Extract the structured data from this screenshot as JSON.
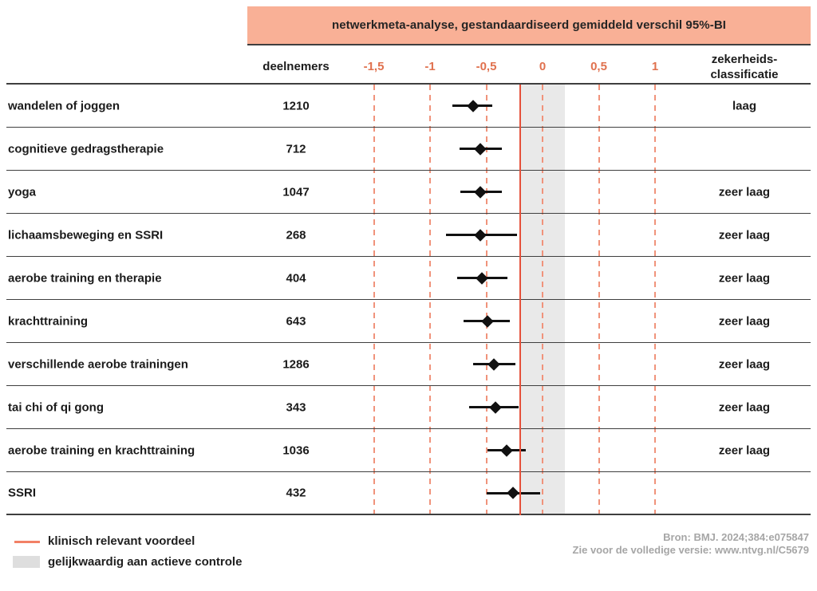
{
  "chart_data": {
    "type": "forest",
    "title": "netwerkmeta-analyse, gestandaardiseerd gemiddeld verschil 95%-BI",
    "columns": {
      "participants": "deelnemers",
      "certainty_line1": "zekerheids-",
      "certainty_line2": "classificatie"
    },
    "axis": {
      "tick_labels": [
        "-1,5",
        "-1",
        "-0,5",
        "0",
        "0,5",
        "1"
      ],
      "tick_values": [
        -1.5,
        -1,
        -0.5,
        0,
        0.5,
        1
      ],
      "xlim": [
        -1.72,
        1.4
      ],
      "grid": "dashed-vertical"
    },
    "reference_line": -0.2,
    "equivalence_band": [
      -0.2,
      0.2
    ],
    "rows": [
      {
        "label": "wandelen of joggen",
        "participants": "1210",
        "smd": -0.62,
        "ci_low": -0.8,
        "ci_high": -0.45,
        "certainty": "laag"
      },
      {
        "label": "cognitieve gedragstherapie",
        "participants": "712",
        "smd": -0.55,
        "ci_low": -0.74,
        "ci_high": -0.36,
        "certainty": ""
      },
      {
        "label": "yoga",
        "participants": "1047",
        "smd": -0.55,
        "ci_low": -0.73,
        "ci_high": -0.36,
        "certainty": "zeer laag"
      },
      {
        "label": "lichaamsbeweging en SSRI",
        "participants": "268",
        "smd": -0.55,
        "ci_low": -0.86,
        "ci_high": -0.23,
        "certainty": "zeer laag"
      },
      {
        "label": "aerobe training en therapie",
        "participants": "404",
        "smd": -0.54,
        "ci_low": -0.76,
        "ci_high": -0.31,
        "certainty": "zeer laag"
      },
      {
        "label": "krachttraining",
        "participants": "643",
        "smd": -0.49,
        "ci_low": -0.7,
        "ci_high": -0.29,
        "certainty": "zeer laag"
      },
      {
        "label": "verschillende aerobe trainingen",
        "participants": "1286",
        "smd": -0.43,
        "ci_low": -0.62,
        "ci_high": -0.24,
        "certainty": "zeer laag"
      },
      {
        "label": "tai chi of qi gong",
        "participants": "343",
        "smd": -0.42,
        "ci_low": -0.65,
        "ci_high": -0.21,
        "certainty": "zeer laag"
      },
      {
        "label": "aerobe training en krachttraining",
        "participants": "1036",
        "smd": -0.32,
        "ci_low": -0.49,
        "ci_high": -0.15,
        "certainty": "zeer laag"
      },
      {
        "label": "SSRI",
        "participants": "432",
        "smd": -0.26,
        "ci_low": -0.5,
        "ci_high": -0.02,
        "certainty": ""
      }
    ],
    "legend": [
      {
        "swatch": "line",
        "label": "klinisch relevant voordeel"
      },
      {
        "swatch": "box",
        "label": "gelijkwaardig aan actieve controle"
      }
    ],
    "source": [
      "Bron: BMJ. 2024;384:e075847",
      "Zie voor de volledige versie: www.ntvg.nl/C5679"
    ]
  },
  "colors": {
    "banner_bg": "#f9b096",
    "accent_line": "#e5503a",
    "tick_text": "#e0714e",
    "dashed_grid": "#f0937b",
    "equivalence_band": "#e9e9e9",
    "rule": "#3f3f3f",
    "text": "#1b1b1b",
    "muted_text": "#a6a6a6",
    "legend_line": "#f28066",
    "legend_box": "#dedede"
  }
}
